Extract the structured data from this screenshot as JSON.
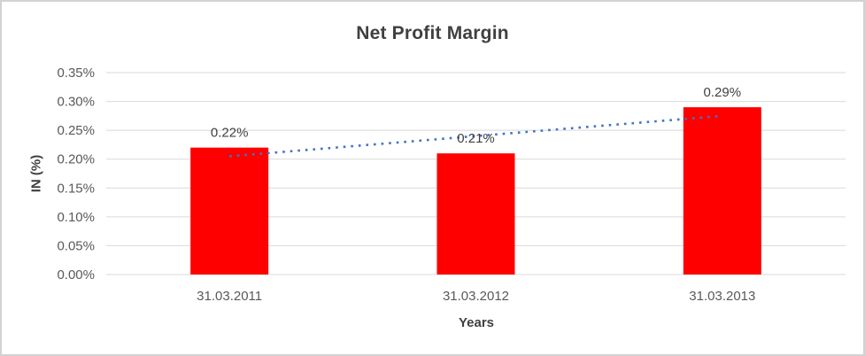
{
  "chart_data": {
    "type": "bar",
    "title": "Net Profit Margin",
    "xlabel": "Years",
    "ylabel": "IN (%)",
    "categories": [
      "31.03.2011",
      "31.03.2012",
      "31.03.2013"
    ],
    "values": [
      0.22,
      0.21,
      0.29
    ],
    "data_labels": [
      "0.22%",
      "0.21%",
      "0.29%"
    ],
    "ylim": [
      0,
      0.35
    ],
    "yticks": [
      {
        "v": 0.0,
        "label": "0.00%"
      },
      {
        "v": 0.05,
        "label": "0.05%"
      },
      {
        "v": 0.1,
        "label": "0.10%"
      },
      {
        "v": 0.15,
        "label": "0.15%"
      },
      {
        "v": 0.2,
        "label": "0.20%"
      },
      {
        "v": 0.25,
        "label": "0.25%"
      },
      {
        "v": 0.3,
        "label": "0.30%"
      },
      {
        "v": 0.35,
        "label": "0.35%"
      }
    ],
    "grid": true,
    "legend": "none",
    "bar_color": "#FF0000",
    "trendline": {
      "type": "linear",
      "style": "dotted",
      "color": "#4472C4"
    }
  },
  "colors": {
    "background": "#FFFFFF",
    "frame_border": "#D2D2D2",
    "gridline": "#D9D9D9",
    "title_text": "#404040",
    "axis_title_text": "#404040",
    "tick_text": "#595959",
    "data_label_text": "#404040",
    "bar": "#FF0000",
    "trendline": "#4472C4"
  }
}
